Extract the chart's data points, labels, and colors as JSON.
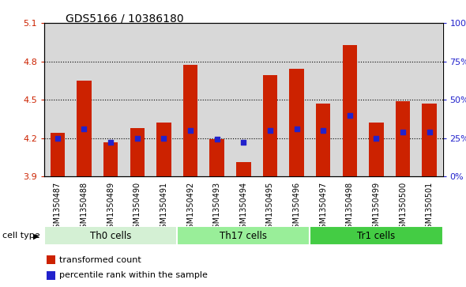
{
  "title": "GDS5166 / 10386180",
  "samples": [
    "GSM1350487",
    "GSM1350488",
    "GSM1350489",
    "GSM1350490",
    "GSM1350491",
    "GSM1350492",
    "GSM1350493",
    "GSM1350494",
    "GSM1350495",
    "GSM1350496",
    "GSM1350497",
    "GSM1350498",
    "GSM1350499",
    "GSM1350500",
    "GSM1350501"
  ],
  "red_values": [
    4.24,
    4.65,
    4.17,
    4.28,
    4.32,
    4.77,
    4.19,
    4.01,
    4.69,
    4.74,
    4.47,
    4.93,
    4.32,
    4.49,
    4.47
  ],
  "blue_values": [
    4.2,
    4.27,
    4.17,
    4.2,
    4.2,
    4.26,
    4.19,
    4.17,
    4.26,
    4.27,
    4.26,
    4.38,
    4.2,
    4.25,
    4.25
  ],
  "ylim_left": [
    3.9,
    5.1
  ],
  "ylim_right": [
    0,
    100
  ],
  "yticks_left": [
    3.9,
    4.2,
    4.5,
    4.8,
    5.1
  ],
  "ytick_labels_right": [
    "0%",
    "25%",
    "50%",
    "75%",
    "100%"
  ],
  "yticks_right": [
    0,
    25,
    50,
    75,
    100
  ],
  "bar_color": "#cc2200",
  "dot_color": "#2222cc",
  "col_bg_color": "#d8d8d8",
  "plot_bg": "#ffffff",
  "groups": [
    {
      "label": "Th0 cells",
      "start": 0,
      "end": 4,
      "color": "#d4f0d4"
    },
    {
      "label": "Th17 cells",
      "start": 5,
      "end": 9,
      "color": "#99ee99"
    },
    {
      "label": "Tr1 cells",
      "start": 10,
      "end": 14,
      "color": "#44cc44"
    }
  ],
  "legend_items": [
    {
      "label": "transformed count",
      "color": "#cc2200"
    },
    {
      "label": "percentile rank within the sample",
      "color": "#2222cc"
    }
  ],
  "cell_type_label": "cell type",
  "bar_width": 0.55,
  "dot_size": 16
}
